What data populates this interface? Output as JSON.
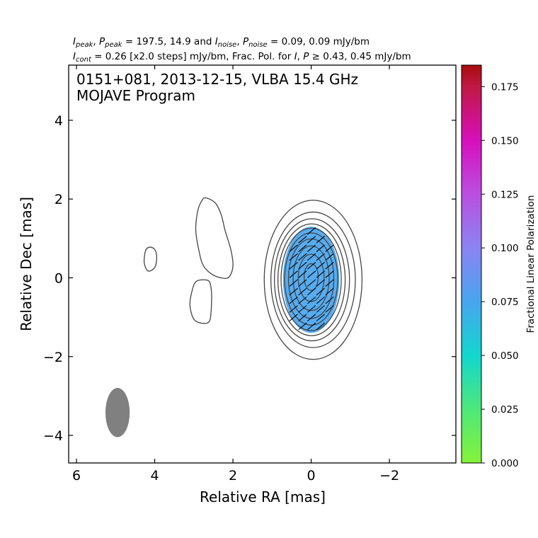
{
  "chart_data": {
    "type": "contour",
    "header": {
      "line1": {
        "I_peak": "I",
        "I_peak_sub": "peak",
        "P_peak": "P",
        "P_peak_sub": "peak",
        "peak_values": " = 197.5, 14.9 and ",
        "I_noise": "I",
        "I_noise_sub": "noise",
        "P_noise": "P",
        "P_noise_sub": "noise",
        "noise_values": " = 0.09, 0.09 mJy/bm"
      },
      "line2": {
        "I_cont": "I",
        "I_cont_sub": "cont",
        "cont_values": " = 0.26 [x2.0 steps] mJy/bm, Frac. Pol. for ",
        "I": "I",
        "sep": ", ",
        "P": "P",
        "frac_values": " ≥ 0.43, 0.45 mJy/bm"
      }
    },
    "title_line1": "0151+081, 2013-12-15, VLBA 15.4 GHz",
    "title_line2": "MOJAVE Program",
    "xlabel": "Relative RA [mas]",
    "ylabel": "Relative Dec [mas]",
    "xlim": [
      6.2,
      -3.7
    ],
    "ylim": [
      -4.7,
      5.4
    ],
    "x_ticks": [
      6,
      4,
      2,
      0,
      -2
    ],
    "x_tick_labels": [
      "6",
      "4",
      "2",
      "0",
      "−2"
    ],
    "y_ticks": [
      4,
      2,
      0,
      -2,
      -4
    ],
    "y_tick_labels": [
      "4",
      "2",
      "0",
      "−2",
      "−4"
    ],
    "contour_levels_mJy": [
      0.26,
      0.52,
      1.04,
      2.08,
      4.16,
      8.32,
      16.64,
      33.28,
      66.56,
      133.12
    ],
    "core_contours": [
      {
        "rx": 1.25,
        "ry": 2.02,
        "cx": -0.05,
        "cy": -0.05
      },
      {
        "rx": 1.08,
        "ry": 1.72,
        "cx": -0.05,
        "cy": -0.05
      },
      {
        "rx": 0.96,
        "ry": 1.55,
        "cx": -0.02,
        "cy": -0.05
      },
      {
        "rx": 0.86,
        "ry": 1.42,
        "cx": -0.01,
        "cy": -0.05
      },
      {
        "rx": 0.77,
        "ry": 1.3,
        "cx": 0.0,
        "cy": -0.04
      },
      {
        "rx": 0.68,
        "ry": 1.17,
        "cx": 0.0,
        "cy": -0.03
      },
      {
        "rx": 0.58,
        "ry": 1.01,
        "cx": 0.0,
        "cy": -0.02
      },
      {
        "rx": 0.46,
        "ry": 0.82,
        "cx": 0.0,
        "cy": -0.01
      },
      {
        "rx": 0.33,
        "ry": 0.6,
        "cx": 0.0,
        "cy": 0.0
      },
      {
        "rx": 0.18,
        "ry": 0.34,
        "cx": 0.0,
        "cy": 0.02
      }
    ],
    "jet_contours": [
      {
        "name": "north-jet-blob",
        "points": [
          [
            2.7,
            2.03
          ],
          [
            2.45,
            1.9
          ],
          [
            2.3,
            1.6
          ],
          [
            2.2,
            1.2
          ],
          [
            2.05,
            0.7
          ],
          [
            2.0,
            0.3
          ],
          [
            2.1,
            0.02
          ],
          [
            2.3,
            0.0
          ],
          [
            2.55,
            0.1
          ],
          [
            2.75,
            0.3
          ],
          [
            2.85,
            0.6
          ],
          [
            2.95,
            1.2
          ],
          [
            2.9,
            1.7
          ],
          [
            2.8,
            1.95
          ]
        ]
      },
      {
        "name": "south-jet-blob",
        "points": [
          [
            2.75,
            -0.05
          ],
          [
            2.95,
            -0.1
          ],
          [
            3.05,
            -0.35
          ],
          [
            3.1,
            -0.7
          ],
          [
            3.0,
            -1.05
          ],
          [
            2.8,
            -1.15
          ],
          [
            2.6,
            -1.1
          ],
          [
            2.55,
            -0.7
          ],
          [
            2.55,
            -0.35
          ],
          [
            2.6,
            -0.1
          ]
        ]
      },
      {
        "name": "west-jet-blob",
        "points": [
          [
            4.12,
            0.78
          ],
          [
            4.23,
            0.7
          ],
          [
            4.27,
            0.4
          ],
          [
            4.2,
            0.2
          ],
          [
            4.1,
            0.18
          ],
          [
            3.98,
            0.3
          ],
          [
            3.95,
            0.55
          ],
          [
            4.0,
            0.72
          ]
        ]
      }
    ],
    "polarization_region": {
      "rx": 0.72,
      "ry": 1.35,
      "cx": 0.0,
      "cy": -0.05,
      "fractional_polarization_approx": 0.075
    },
    "evpa_vectors_deg": [
      40,
      40,
      40,
      40,
      40,
      40,
      40,
      40
    ],
    "beam": {
      "x": 4.95,
      "y": -3.42,
      "bmaj_mas": 1.25,
      "bmin_mas": 0.62,
      "pa_deg": 0
    },
    "colorbar": {
      "label": "Fractional Linear Polarization",
      "min": 0.0,
      "max": 0.185,
      "ticks": [
        0.0,
        0.025,
        0.05,
        0.075,
        0.1,
        0.125,
        0.15,
        0.175
      ],
      "tick_labels": [
        "0.000",
        "0.025",
        "0.050",
        "0.075",
        "0.100",
        "0.125",
        "0.150",
        "0.175"
      ],
      "colormap_stops": [
        {
          "v": 0.0,
          "color": "#85f23a"
        },
        {
          "v": 0.025,
          "color": "#4ee87a"
        },
        {
          "v": 0.05,
          "color": "#12d6cf"
        },
        {
          "v": 0.075,
          "color": "#48a5ef"
        },
        {
          "v": 0.1,
          "color": "#8a84f2"
        },
        {
          "v": 0.125,
          "color": "#bb4ee0"
        },
        {
          "v": 0.15,
          "color": "#d70fbd"
        },
        {
          "v": 0.175,
          "color": "#c01844"
        },
        {
          "v": 0.185,
          "color": "#a80c0c"
        }
      ]
    },
    "colors": {
      "contour": "#454545",
      "beam": "#808080",
      "evpa": "#000000"
    }
  }
}
